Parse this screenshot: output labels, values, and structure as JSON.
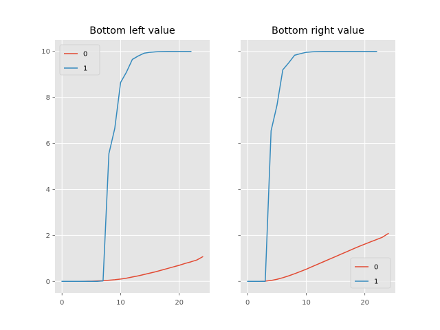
{
  "chart_data": [
    {
      "type": "line",
      "title": "Bottom left value",
      "xlabel": "",
      "ylabel": "",
      "xlim": [
        -1.2,
        25.2
      ],
      "ylim": [
        -0.5,
        10.5
      ],
      "xticks": [
        0,
        10,
        20
      ],
      "yticks": [
        0,
        2,
        4,
        6,
        8,
        10
      ],
      "grid": true,
      "legend_position": "top-left",
      "series": [
        {
          "name": "0",
          "color": "#E24A33",
          "x": [
            0,
            1,
            2,
            3,
            4,
            5,
            6,
            7,
            8,
            9,
            10,
            11,
            12,
            13,
            14,
            15,
            16,
            17,
            18,
            19,
            20,
            21,
            22,
            23,
            24
          ],
          "y": [
            0,
            0,
            0,
            0,
            0.005,
            0.01,
            0.02,
            0.03,
            0.05,
            0.07,
            0.1,
            0.14,
            0.19,
            0.24,
            0.3,
            0.36,
            0.42,
            0.49,
            0.56,
            0.63,
            0.7,
            0.78,
            0.85,
            0.93,
            1.07
          ]
        },
        {
          "name": "1",
          "color": "#348ABD",
          "x": [
            0,
            1,
            2,
            3,
            4,
            5,
            6,
            7,
            8,
            9,
            10,
            11,
            12,
            13,
            14,
            15,
            16,
            17,
            18,
            19,
            20,
            21,
            22
          ],
          "y": [
            0,
            0,
            0,
            0,
            0,
            0,
            0,
            0.02,
            5.55,
            6.65,
            8.65,
            9.1,
            9.65,
            9.8,
            9.92,
            9.96,
            9.98,
            9.99,
            10,
            10,
            10,
            10,
            10
          ]
        }
      ]
    },
    {
      "type": "line",
      "title": "Bottom right value",
      "xlabel": "",
      "ylabel": "",
      "xlim": [
        -1.2,
        25.2
      ],
      "ylim": [
        -0.5,
        10.5
      ],
      "xticks": [
        0,
        10,
        20
      ],
      "yticks": [
        0,
        2,
        4,
        6,
        8,
        10
      ],
      "grid": true,
      "legend_position": "bottom-right",
      "series": [
        {
          "name": "0",
          "color": "#E24A33",
          "x": [
            0,
            1,
            2,
            3,
            4,
            5,
            6,
            7,
            8,
            9,
            10,
            11,
            12,
            13,
            14,
            15,
            16,
            17,
            18,
            19,
            20,
            21,
            22,
            23,
            24
          ],
          "y": [
            0,
            0,
            0,
            0.01,
            0.04,
            0.09,
            0.16,
            0.24,
            0.33,
            0.43,
            0.53,
            0.64,
            0.75,
            0.86,
            0.97,
            1.08,
            1.19,
            1.3,
            1.41,
            1.52,
            1.62,
            1.72,
            1.82,
            1.92,
            2.08
          ]
        },
        {
          "name": "1",
          "color": "#348ABD",
          "x": [
            0,
            1,
            2,
            3,
            4,
            5,
            6,
            7,
            8,
            9,
            10,
            11,
            12,
            13,
            14,
            15,
            16,
            17,
            18,
            19,
            20,
            21,
            22
          ],
          "y": [
            0,
            0,
            0,
            0,
            6.55,
            7.65,
            9.2,
            9.5,
            9.83,
            9.9,
            9.96,
            9.98,
            9.99,
            10,
            10,
            10,
            10,
            10,
            10,
            10,
            10,
            10,
            10
          ]
        }
      ]
    }
  ]
}
